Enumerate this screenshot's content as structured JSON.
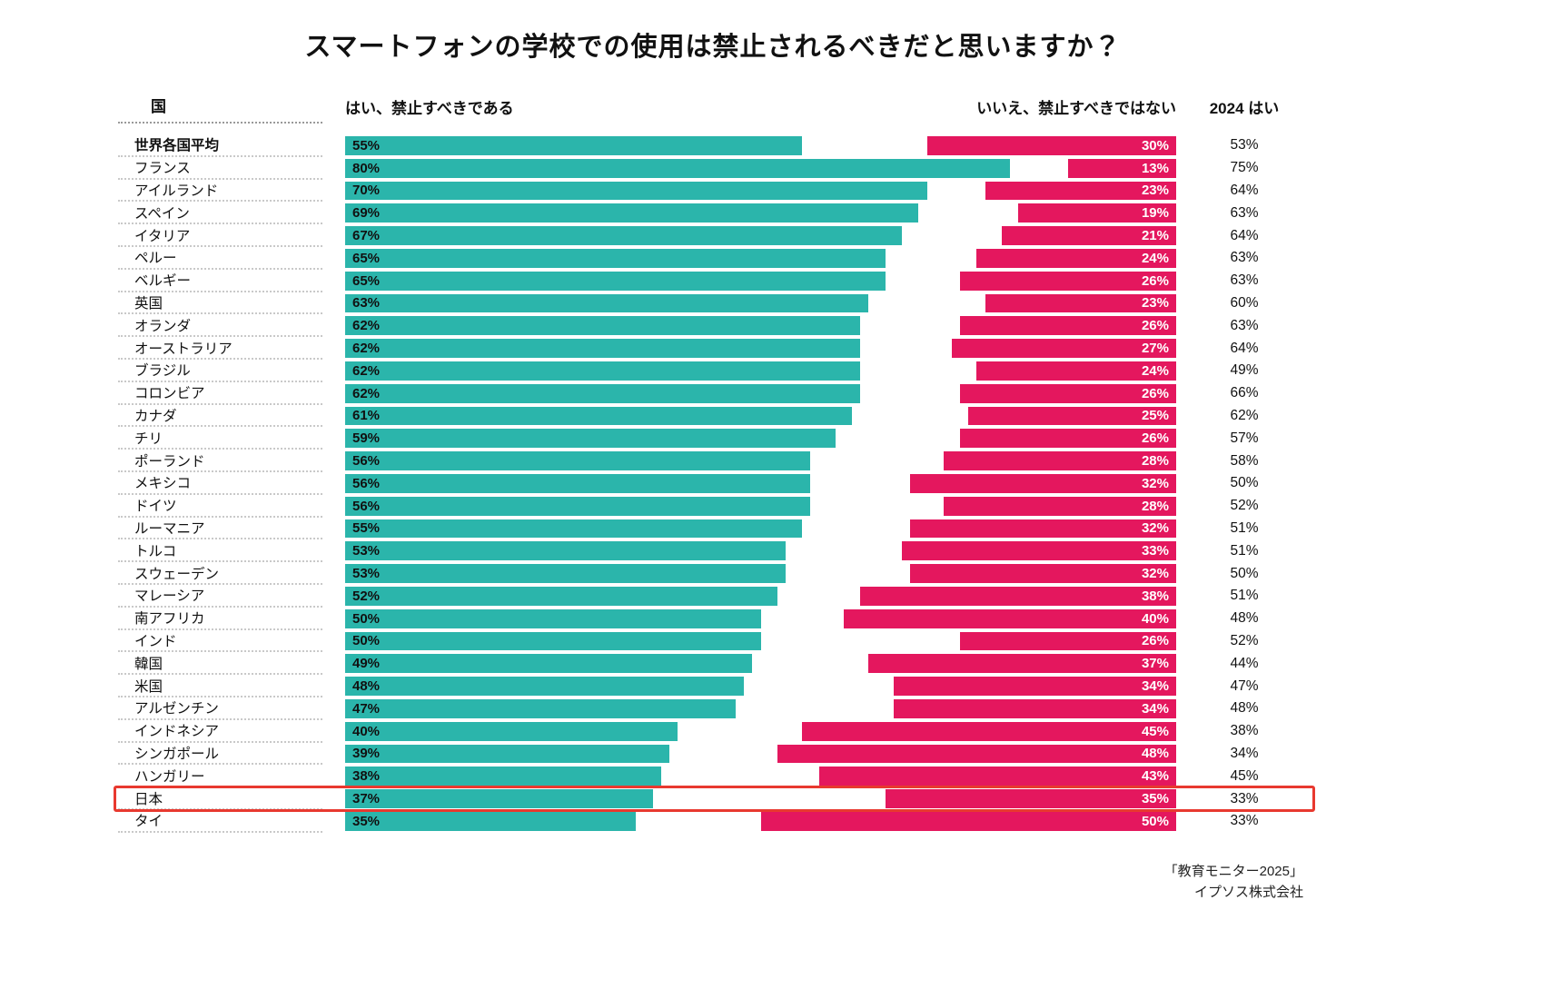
{
  "columns": {
    "country": "国",
    "yes": "はい、禁止すべきである",
    "no": "いいえ、禁止すべきではない",
    "y2024": "2024 はい"
  },
  "colors": {
    "yes_bar": "#2BB5AB",
    "no_bar": "#E4175E",
    "highlight_box": "#E8392F"
  },
  "source": {
    "line1": "「教育モニター2025」",
    "line2": "イプソス株式会社"
  },
  "chart_data": {
    "type": "bar",
    "title": "スマートフォンの学校での使用は禁止されるべきだと思いますか？",
    "unit": "%",
    "xlim": [
      0,
      100
    ],
    "legend_position": "top",
    "grid": false,
    "highlight_category": "日本",
    "bold_category": "世界各国平均",
    "categories": [
      "世界各国平均",
      "フランス",
      "アイルランド",
      "スペイン",
      "イタリア",
      "ペルー",
      "ベルギー",
      "英国",
      "オランダ",
      "オーストラリア",
      "ブラジル",
      "コロンビア",
      "カナダ",
      "チリ",
      "ポーランド",
      "メキシコ",
      "ドイツ",
      "ルーマニア",
      "トルコ",
      "スウェーデン",
      "マレーシア",
      "南アフリカ",
      "インド",
      "韓国",
      "米国",
      "アルゼンチン",
      "インドネシア",
      "シンガポール",
      "ハンガリー",
      "日本",
      "タイ"
    ],
    "series": [
      {
        "name": "はい、禁止すべきである",
        "color": "#2BB5AB",
        "values": [
          55,
          80,
          70,
          69,
          67,
          65,
          65,
          63,
          62,
          62,
          62,
          62,
          61,
          59,
          56,
          56,
          56,
          55,
          53,
          53,
          52,
          50,
          50,
          49,
          48,
          47,
          40,
          39,
          38,
          37,
          35
        ]
      },
      {
        "name": "いいえ、禁止すべきではない",
        "color": "#E4175E",
        "values": [
          30,
          13,
          23,
          19,
          21,
          24,
          26,
          23,
          26,
          27,
          24,
          26,
          25,
          26,
          28,
          32,
          28,
          32,
          33,
          32,
          38,
          40,
          26,
          37,
          34,
          34,
          45,
          48,
          43,
          35,
          50
        ]
      },
      {
        "name": "2024 はい",
        "color": "#111111",
        "values": [
          53,
          75,
          64,
          63,
          64,
          63,
          63,
          60,
          63,
          64,
          49,
          66,
          62,
          57,
          58,
          50,
          52,
          51,
          51,
          50,
          51,
          48,
          52,
          44,
          47,
          48,
          38,
          34,
          45,
          33,
          33
        ]
      }
    ]
  }
}
